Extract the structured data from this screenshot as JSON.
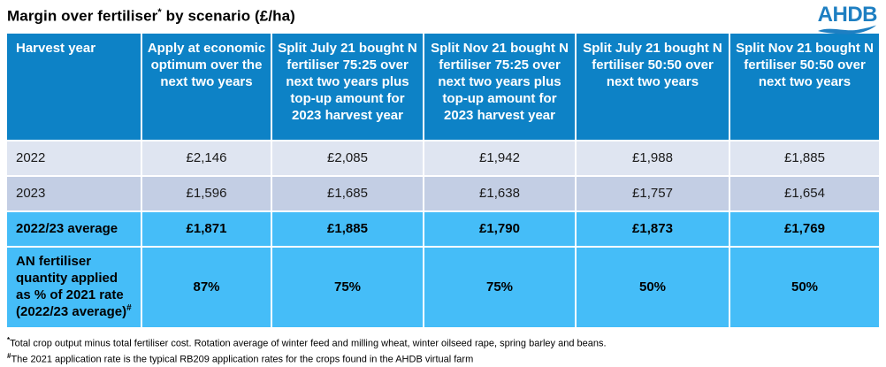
{
  "title": {
    "pre": "Margin over fertiliser",
    "sup": "*",
    "post": " by scenario (£/ha)"
  },
  "logo": {
    "text": "AHDB"
  },
  "table": {
    "columns": [
      "Harvest year",
      "Apply at economic optimum over the next two years",
      "Split July 21 bought N fertiliser 75:25 over next two years plus top-up amount for 2023 harvest year",
      "Split Nov 21 bought N fertiliser 75:25 over next two years plus top-up amount for 2023 harvest year",
      "Split July 21 bought N fertiliser 50:50 over next two years",
      "Split Nov 21 bought N fertiliser 50:50 over next two years"
    ],
    "rows": [
      {
        "label": "2022",
        "values": [
          "£2,146",
          "£2,085",
          "£1,942",
          "£1,988",
          "£1,885"
        ],
        "style": "row-light"
      },
      {
        "label": "2023",
        "values": [
          "£1,596",
          "£1,685",
          "£1,638",
          "£1,757",
          "£1,654"
        ],
        "style": "row-medium"
      },
      {
        "label": "2022/23 average",
        "values": [
          "£1,871",
          "£1,885",
          "£1,790",
          "£1,873",
          "£1,769"
        ],
        "style": "row-highlight"
      },
      {
        "label": "AN fertiliser quantity applied as % of 2021 rate (2022/23 average)",
        "label_sup": "#",
        "values": [
          "87%",
          "75%",
          "75%",
          "50%",
          "50%"
        ],
        "style": "row-highlight row-tall"
      }
    ]
  },
  "footnotes": [
    {
      "sup": "*",
      "text": "Total crop output minus total fertiliser cost. Rotation average of winter feed and milling wheat, winter oilseed rape, spring barley and beans."
    },
    {
      "sup": "#",
      "text": "The 2021 application rate is the typical RB209 application rates for the crops found in the AHDB virtual farm"
    }
  ],
  "colors": {
    "header_bg": "#0d82c6",
    "row_light_bg": "#dfe5f1",
    "row_medium_bg": "#c3cee4",
    "highlight_bg": "#45bdf8",
    "header_text": "#ffffff",
    "logo_blue": "#1e7fc2"
  },
  "chart_data": {
    "type": "table",
    "title": "Margin over fertiliser* by scenario (£/ha)",
    "columns": [
      "Harvest year",
      "Apply at economic optimum over the next two years",
      "Split July 21 bought N fertiliser 75:25 over next two years plus top-up amount for 2023 harvest year",
      "Split Nov 21 bought N fertiliser 75:25 over next two years plus top-up amount for 2023 harvest year",
      "Split July 21 bought N fertiliser 50:50 over next two years",
      "Split Nov 21 bought N fertiliser 50:50 over next two years"
    ],
    "rows": [
      [
        "2022",
        "£2,146",
        "£2,085",
        "£1,942",
        "£1,988",
        "£1,885"
      ],
      [
        "2023",
        "£1,596",
        "£1,685",
        "£1,638",
        "£1,757",
        "£1,654"
      ],
      [
        "2022/23 average",
        "£1,871",
        "£1,885",
        "£1,790",
        "£1,873",
        "£1,769"
      ],
      [
        "AN fertiliser quantity applied as % of 2021 rate (2022/23 average)#",
        "87%",
        "75%",
        "75%",
        "50%",
        "50%"
      ]
    ]
  }
}
